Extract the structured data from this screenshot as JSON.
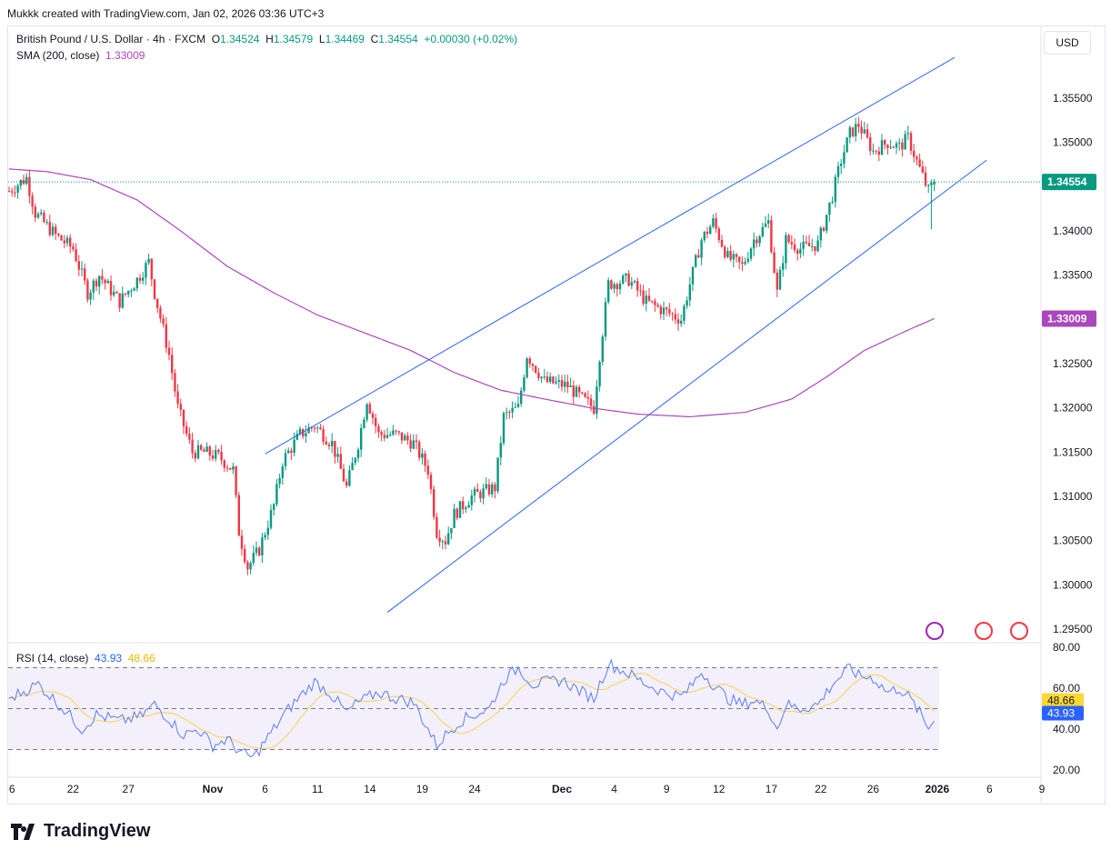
{
  "header": {
    "credit": "Mukkk created with TradingView.com, Jan 02, 2026 03:36 UTC+3"
  },
  "legend": {
    "symbol": "British Pound / U.S. Dollar · 4h · FXCM",
    "o_label": "O",
    "o": "1.34524",
    "h_label": "H",
    "h": "1.34579",
    "l_label": "L",
    "l": "1.34469",
    "c_label": "C",
    "c": "1.34554",
    "change": "+0.00030 (+0.02%)",
    "sma_label": "SMA (200, close)",
    "sma_value": "1.33009",
    "rsi_label": "RSI (14, close)",
    "rsi_value": "43.93",
    "rsi_ma_value": "48.66"
  },
  "currency_button": "USD",
  "logo_text": "TradingView",
  "colors": {
    "up": "#089981",
    "down": "#f23645",
    "sma": "#ab47bc",
    "channel": "#2962ff",
    "rsi": "#5b7cf5",
    "rsi_ma": "#f7d154"
  },
  "chart_data": [
    {
      "type": "candlestick",
      "title": "British Pound / U.S. Dollar · 4h · FXCM",
      "ylim": [
        1.2925,
        1.3595
      ],
      "price_ticks": [
        "1.35500",
        "1.35000",
        "1.34000",
        "1.33500",
        "1.32500",
        "1.32000",
        "1.31500",
        "1.31000",
        "1.30500",
        "1.30000",
        "1.29500"
      ],
      "x_ticks": [
        {
          "bar": 1,
          "label": "6"
        },
        {
          "bar": 22,
          "label": "22"
        },
        {
          "bar": 41,
          "label": "27"
        },
        {
          "bar": 70,
          "label": "Nov"
        },
        {
          "bar": 88,
          "label": "6"
        },
        {
          "bar": 106,
          "label": "11"
        },
        {
          "bar": 124,
          "label": "14"
        },
        {
          "bar": 142,
          "label": "19"
        },
        {
          "bar": 160,
          "label": "24"
        },
        {
          "bar": 190,
          "label": "Dec"
        },
        {
          "bar": 208,
          "label": "4"
        },
        {
          "bar": 226,
          "label": "9"
        },
        {
          "bar": 244,
          "label": "12"
        },
        {
          "bar": 262,
          "label": "17"
        },
        {
          "bar": 279,
          "label": "22"
        },
        {
          "bar": 297,
          "label": "26"
        },
        {
          "bar": 319,
          "label": "2026"
        },
        {
          "bar": 337,
          "label": "6"
        },
        {
          "bar": 355,
          "label": "9"
        }
      ],
      "close_path": [
        [
          0,
          1.3445
        ],
        [
          6,
          1.346
        ],
        [
          9,
          1.342
        ],
        [
          16,
          1.3395
        ],
        [
          22,
          1.338
        ],
        [
          27,
          1.333
        ],
        [
          31,
          1.335
        ],
        [
          38,
          1.332
        ],
        [
          44,
          1.3345
        ],
        [
          48,
          1.3365
        ],
        [
          50,
          1.333
        ],
        [
          55,
          1.326
        ],
        [
          58,
          1.32
        ],
        [
          63,
          1.315
        ],
        [
          67,
          1.315
        ],
        [
          72,
          1.3145
        ],
        [
          77,
          1.313
        ],
        [
          79,
          1.306
        ],
        [
          82,
          1.302
        ],
        [
          86,
          1.304
        ],
        [
          91,
          1.309
        ],
        [
          94,
          1.314
        ],
        [
          100,
          1.317
        ],
        [
          105,
          1.318
        ],
        [
          111,
          1.316
        ],
        [
          116,
          1.311
        ],
        [
          120,
          1.316
        ],
        [
          123,
          1.321
        ],
        [
          127,
          1.317
        ],
        [
          133,
          1.317
        ],
        [
          139,
          1.316
        ],
        [
          144,
          1.313
        ],
        [
          147,
          1.306
        ],
        [
          150,
          1.305
        ],
        [
          153,
          1.308
        ],
        [
          159,
          1.31
        ],
        [
          167,
          1.311
        ],
        [
          170,
          1.319
        ],
        [
          175,
          1.32
        ],
        [
          178,
          1.326
        ],
        [
          184,
          1.323
        ],
        [
          192,
          1.3225
        ],
        [
          197,
          1.321
        ],
        [
          201,
          1.32
        ],
        [
          203,
          1.326
        ],
        [
          206,
          1.334
        ],
        [
          213,
          1.3345
        ],
        [
          219,
          1.332
        ],
        [
          225,
          1.331
        ],
        [
          231,
          1.33
        ],
        [
          234,
          1.334
        ],
        [
          238,
          1.339
        ],
        [
          242,
          1.341
        ],
        [
          247,
          1.337
        ],
        [
          252,
          1.336
        ],
        [
          256,
          1.339
        ],
        [
          261,
          1.341
        ],
        [
          264,
          1.333
        ],
        [
          267,
          1.339
        ],
        [
          272,
          1.338
        ],
        [
          278,
          1.3385
        ],
        [
          283,
          1.344
        ],
        [
          286,
          1.348
        ],
        [
          289,
          1.351
        ],
        [
          292,
          1.352
        ],
        [
          297,
          1.349
        ],
        [
          302,
          1.35
        ],
        [
          306,
          1.3495
        ],
        [
          309,
          1.3505
        ],
        [
          313,
          1.347
        ],
        [
          316,
          1.3445
        ],
        [
          318,
          1.34554
        ]
      ],
      "sma200": [
        [
          0,
          1.347
        ],
        [
          13,
          1.3467
        ],
        [
          28,
          1.3458
        ],
        [
          44,
          1.3435
        ],
        [
          59,
          1.34
        ],
        [
          75,
          1.336
        ],
        [
          91,
          1.333
        ],
        [
          106,
          1.3305
        ],
        [
          122,
          1.3285
        ],
        [
          138,
          1.3265
        ],
        [
          153,
          1.324
        ],
        [
          169,
          1.322
        ],
        [
          184,
          1.321
        ],
        [
          200,
          1.32
        ],
        [
          216,
          1.3193
        ],
        [
          234,
          1.319
        ],
        [
          253,
          1.3195
        ],
        [
          269,
          1.321
        ],
        [
          281,
          1.3235
        ],
        [
          294,
          1.3265
        ],
        [
          309,
          1.3288
        ],
        [
          318,
          1.33009
        ]
      ],
      "trendlines": [
        {
          "name": "channel-upper",
          "points": [
            [
              88,
              1.3148
            ],
            [
              325,
              1.3596
            ]
          ]
        },
        {
          "name": "channel-lower",
          "points": [
            [
              130,
              1.2969
            ],
            [
              336,
              1.348
            ]
          ]
        }
      ],
      "last_price": "1.34554",
      "sma_tag": "1.33009"
    },
    {
      "type": "line",
      "title": "RSI (14, close)",
      "ylim": [
        20,
        80
      ],
      "bands": [
        30,
        50,
        70
      ],
      "y_ticks": [
        "80.00",
        "60.00",
        "40.00",
        "20.00"
      ],
      "rsi": [
        [
          0,
          55
        ],
        [
          10,
          62
        ],
        [
          20,
          48
        ],
        [
          25,
          40
        ],
        [
          30,
          47
        ],
        [
          38,
          44
        ],
        [
          45,
          46
        ],
        [
          50,
          52
        ],
        [
          55,
          45
        ],
        [
          60,
          37
        ],
        [
          65,
          40
        ],
        [
          70,
          32
        ],
        [
          75,
          35
        ],
        [
          80,
          28
        ],
        [
          84,
          26
        ],
        [
          88,
          34
        ],
        [
          95,
          48
        ],
        [
          100,
          56
        ],
        [
          105,
          63
        ],
        [
          110,
          58
        ],
        [
          116,
          48
        ],
        [
          120,
          53
        ],
        [
          127,
          58
        ],
        [
          133,
          55
        ],
        [
          139,
          53
        ],
        [
          144,
          40
        ],
        [
          147,
          32
        ],
        [
          150,
          37
        ],
        [
          155,
          44
        ],
        [
          165,
          50
        ],
        [
          170,
          64
        ],
        [
          175,
          70
        ],
        [
          180,
          62
        ],
        [
          190,
          64
        ],
        [
          197,
          58
        ],
        [
          201,
          55
        ],
        [
          206,
          72
        ],
        [
          213,
          67
        ],
        [
          219,
          62
        ],
        [
          225,
          58
        ],
        [
          231,
          56
        ],
        [
          234,
          60
        ],
        [
          238,
          68
        ],
        [
          242,
          62
        ],
        [
          247,
          55
        ],
        [
          252,
          52
        ],
        [
          256,
          54
        ],
        [
          261,
          50
        ],
        [
          264,
          40
        ],
        [
          267,
          52
        ],
        [
          272,
          50
        ],
        [
          278,
          52
        ],
        [
          283,
          62
        ],
        [
          289,
          70
        ],
        [
          292,
          66
        ],
        [
          297,
          65
        ],
        [
          302,
          58
        ],
        [
          306,
          60
        ],
        [
          309,
          56
        ],
        [
          313,
          48
        ],
        [
          316,
          40
        ],
        [
          318,
          43.93
        ]
      ],
      "rsi_ma_last": 48.66
    }
  ]
}
